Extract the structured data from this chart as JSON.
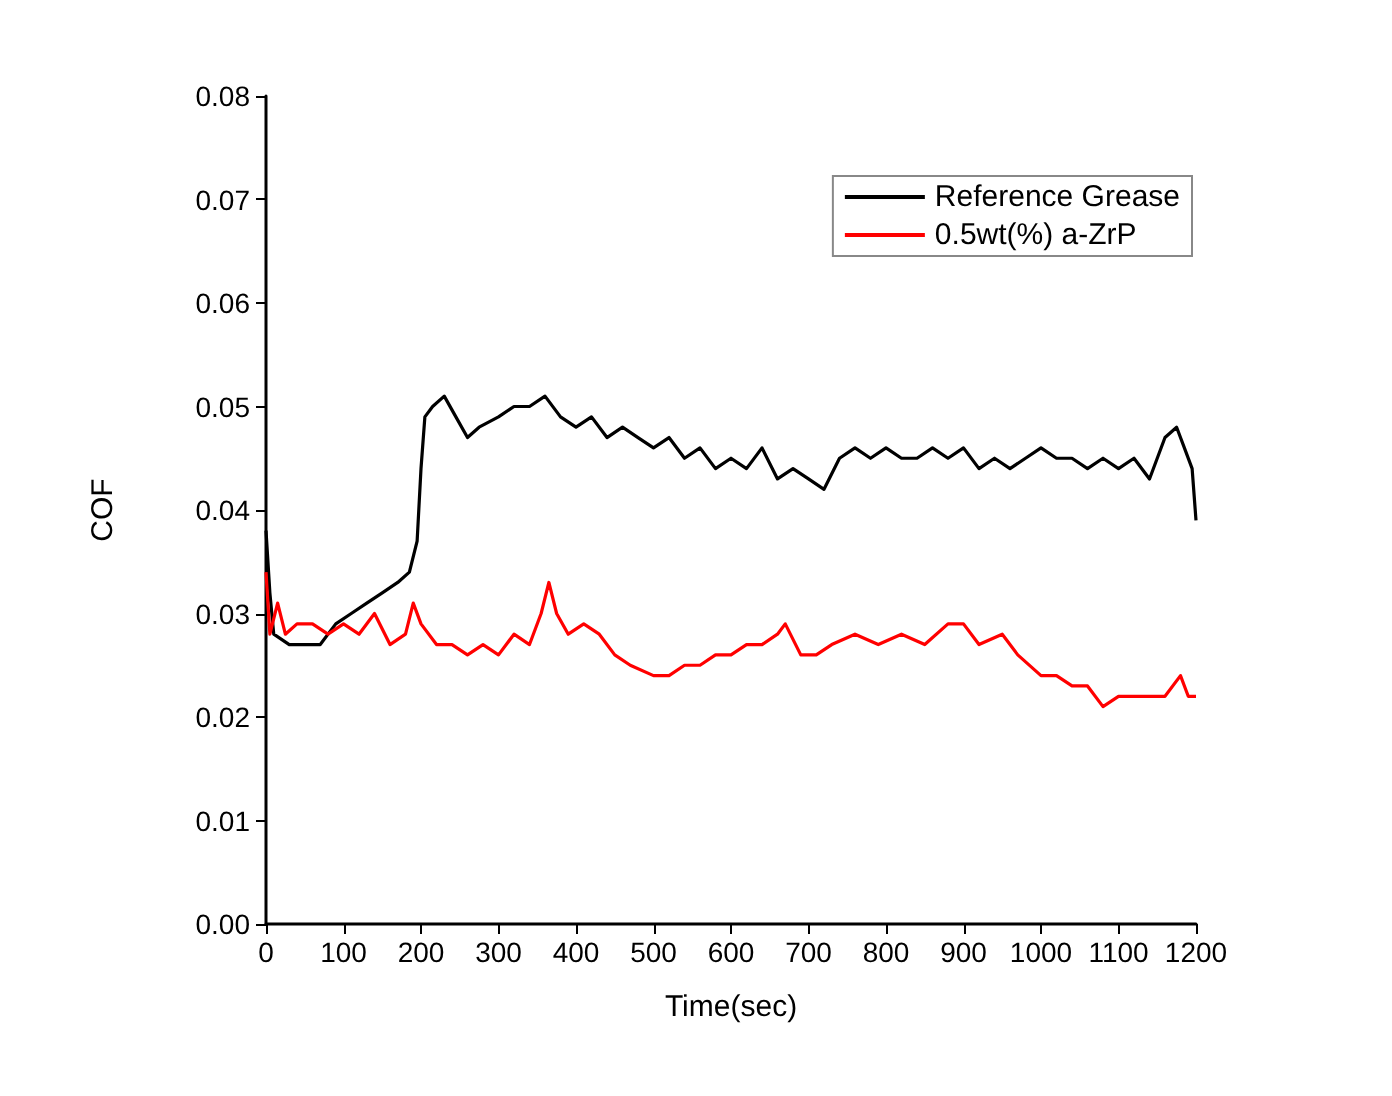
{
  "chart_data": {
    "type": "line",
    "xlabel": "Time(sec)",
    "ylabel": "COF",
    "xlim": [
      0,
      1200
    ],
    "xticks": [
      0,
      100,
      200,
      300,
      400,
      500,
      600,
      700,
      800,
      900,
      1000,
      1100,
      1200
    ],
    "ylim": [
      0,
      0.08
    ],
    "yticks": [
      {
        "value": 0,
        "label": "0.00"
      },
      0.01,
      0.02,
      0.03,
      0.04,
      0.05,
      0.06,
      0.07,
      0.08
    ],
    "grid": false,
    "legend": "top right",
    "marker": "none",
    "line_style": "solid",
    "series": [
      {
        "name": "Reference Grease",
        "color": "#000000",
        "x": [
          0,
          5,
          10,
          30,
          50,
          70,
          90,
          110,
          130,
          150,
          170,
          185,
          195,
          200,
          205,
          215,
          230,
          245,
          260,
          275,
          300,
          320,
          340,
          360,
          380,
          400,
          420,
          440,
          460,
          480,
          500,
          520,
          540,
          560,
          580,
          600,
          620,
          640,
          660,
          680,
          700,
          720,
          740,
          760,
          780,
          800,
          820,
          840,
          860,
          880,
          900,
          920,
          940,
          960,
          980,
          1000,
          1020,
          1040,
          1060,
          1080,
          1100,
          1120,
          1140,
          1160,
          1175,
          1185,
          1195,
          1200
        ],
        "values": [
          0.038,
          0.032,
          0.028,
          0.027,
          0.027,
          0.027,
          0.029,
          0.03,
          0.031,
          0.032,
          0.033,
          0.034,
          0.037,
          0.044,
          0.049,
          0.05,
          0.051,
          0.049,
          0.047,
          0.048,
          0.049,
          0.05,
          0.05,
          0.051,
          0.049,
          0.048,
          0.049,
          0.047,
          0.048,
          0.047,
          0.046,
          0.047,
          0.045,
          0.046,
          0.044,
          0.045,
          0.044,
          0.046,
          0.043,
          0.044,
          0.043,
          0.042,
          0.045,
          0.046,
          0.045,
          0.046,
          0.045,
          0.045,
          0.046,
          0.045,
          0.046,
          0.044,
          0.045,
          0.044,
          0.045,
          0.046,
          0.045,
          0.045,
          0.044,
          0.045,
          0.044,
          0.045,
          0.043,
          0.047,
          0.048,
          0.046,
          0.044,
          0.039
        ]
      },
      {
        "name": "0.5wt(%) a-ZrP",
        "color": "#ff0000",
        "x": [
          0,
          5,
          15,
          25,
          40,
          60,
          80,
          100,
          120,
          140,
          160,
          180,
          190,
          200,
          220,
          240,
          260,
          280,
          300,
          320,
          340,
          355,
          365,
          375,
          390,
          410,
          430,
          450,
          470,
          500,
          520,
          540,
          560,
          580,
          600,
          620,
          640,
          660,
          670,
          690,
          710,
          730,
          760,
          790,
          820,
          850,
          880,
          900,
          920,
          950,
          970,
          1000,
          1020,
          1040,
          1060,
          1080,
          1100,
          1120,
          1140,
          1160,
          1180,
          1190,
          1200
        ],
        "values": [
          0.034,
          0.028,
          0.031,
          0.028,
          0.029,
          0.029,
          0.028,
          0.029,
          0.028,
          0.03,
          0.027,
          0.028,
          0.031,
          0.029,
          0.027,
          0.027,
          0.026,
          0.027,
          0.026,
          0.028,
          0.027,
          0.03,
          0.033,
          0.03,
          0.028,
          0.029,
          0.028,
          0.026,
          0.025,
          0.024,
          0.024,
          0.025,
          0.025,
          0.026,
          0.026,
          0.027,
          0.027,
          0.028,
          0.029,
          0.026,
          0.026,
          0.027,
          0.028,
          0.027,
          0.028,
          0.027,
          0.029,
          0.029,
          0.027,
          0.028,
          0.026,
          0.024,
          0.024,
          0.023,
          0.023,
          0.021,
          0.022,
          0.022,
          0.022,
          0.022,
          0.024,
          0.022,
          0.022
        ]
      }
    ]
  }
}
